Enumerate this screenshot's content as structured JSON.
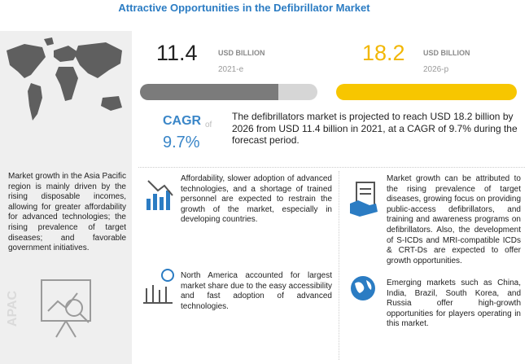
{
  "header": {
    "title": "Attractive Opportunities in the Defibrillator Market"
  },
  "sidebar": {
    "text": "Market growth in the Asia Pacific region is mainly driven by the rising disposable incomes, allowing for greater affordability for advanced technologies; the rising prevalence of target diseases; and favorable government initiatives.",
    "region": "APAC"
  },
  "market": {
    "start": {
      "value": 11.4,
      "unit": "USD BILLION",
      "year": "2021-e"
    },
    "end": {
      "value": 18.2,
      "unit": "USD BILLION",
      "year": "2026-p"
    }
  },
  "cagr": {
    "label": "CAGR",
    "connector": "of",
    "value": "9.7%"
  },
  "summary": "The defibrillators market is projected to reach USD 18.2 billion by 2026 from USD 11.4 billion in 2021, at a CAGR of 9.7% during the forecast period.",
  "insights": [
    "Affordability, slower adoption of advanced technologies, and a shortage of trained personnel are expected to restrain the growth of the market, especially in developing countries.",
    "Market growth can be attributed to the rising prevalence of target diseases, growing focus on providing public-access defibrillators, and training and awareness programs on defibrillators. Also, the development of S-ICDs and MRI-compatible ICDs & CRT-Ds are expected to offer growth opportunities.",
    "North America accounted for largest market share due to the easy accessibility and fast adoption of advanced technologies.",
    "Emerging markets such as China, India, Brazil, South Korea, and Russia offer high-growth opportunities for players operating in this market."
  ]
}
